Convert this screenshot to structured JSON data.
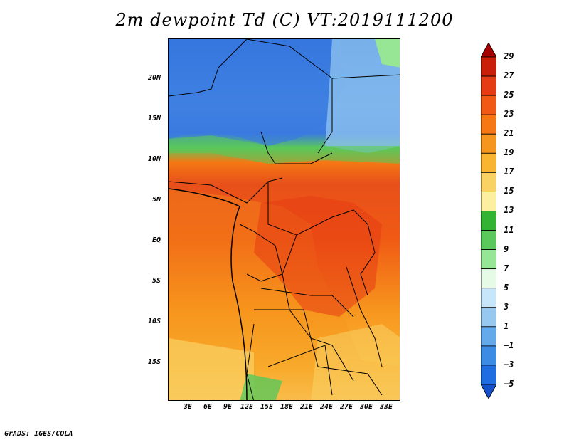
{
  "title": "2m dewpoint Td (C) VT:2019111200",
  "credit": "GrADS: IGES/COLA",
  "lat_ticks": [
    "20N",
    "15N",
    "10N",
    "5N",
    "EQ",
    "5S",
    "10S",
    "15S"
  ],
  "lon_ticks": [
    "3E",
    "6E",
    "9E",
    "12E",
    "15E",
    "18E",
    "21E",
    "24E",
    "27E",
    "30E",
    "33E"
  ],
  "colorbar": {
    "labels": [
      "29",
      "27",
      "25",
      "23",
      "21",
      "19",
      "17",
      "15",
      "13",
      "11",
      "9",
      "7",
      "5",
      "3",
      "1",
      "−1",
      "−3",
      "−5"
    ],
    "colors": [
      "#a50000",
      "#c81e0a",
      "#e63c14",
      "#f05a14",
      "#f57814",
      "#f7961e",
      "#f9b432",
      "#fad264",
      "#fcf0a0",
      "#32b432",
      "#5ac85a",
      "#96e696",
      "#e6fae6",
      "#c8e6fa",
      "#96c8f0",
      "#64aaeb",
      "#3c8ce6",
      "#1e6ee1",
      "#1450c8"
    ]
  },
  "map": {
    "field": "2m dewpoint",
    "units": "C",
    "valid_time": "2019111200"
  }
}
